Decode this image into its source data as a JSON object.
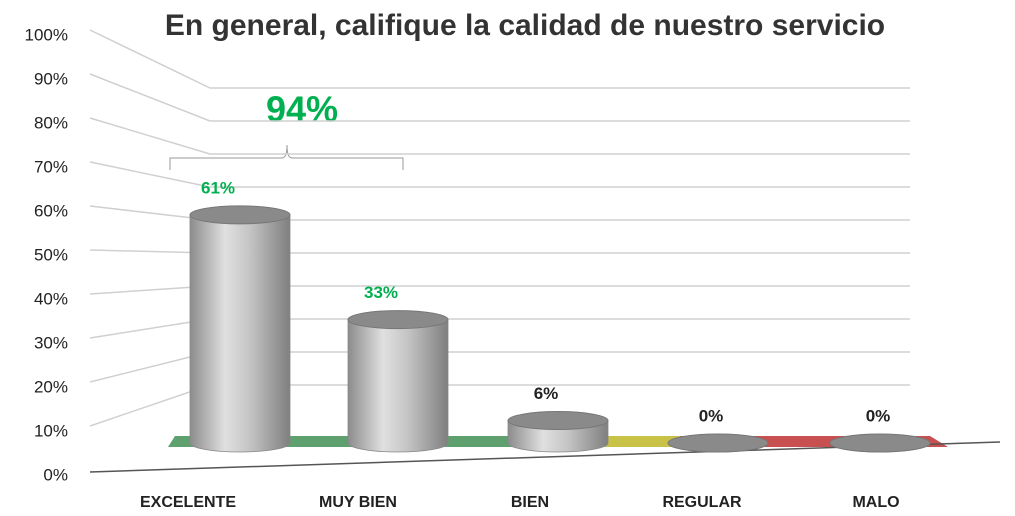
{
  "chart_data": {
    "type": "bar3d",
    "title": "En general, califique la calidad de nuestro servicio",
    "categories": [
      "EXCELENTE",
      "MUY BIEN",
      "BIEN",
      "REGULAR",
      "MALO"
    ],
    "values": [
      61,
      33,
      6,
      0,
      0
    ],
    "value_labels": [
      "61%",
      "33%",
      "6%",
      "0%",
      "0%"
    ],
    "label_colors": [
      "#00b050",
      "#00b050",
      "#222222",
      "#222222",
      "#222222"
    ],
    "color": "#a6a6a6",
    "ylim": [
      0,
      100
    ],
    "yticks": [
      {
        "value": 0,
        "label": "0%"
      },
      {
        "value": 10,
        "label": "10%"
      },
      {
        "value": 20,
        "label": "20%"
      },
      {
        "value": 30,
        "label": "30%"
      },
      {
        "value": 40,
        "label": "40%"
      },
      {
        "value": 50,
        "label": "50%"
      },
      {
        "value": 60,
        "label": "60%"
      },
      {
        "value": 70,
        "label": "70%"
      },
      {
        "value": 80,
        "label": "80%"
      },
      {
        "value": 90,
        "label": "90%"
      },
      {
        "value": 100,
        "label": "100%"
      }
    ],
    "grid": true,
    "annotation": "94%",
    "annotation_color": "#00b050"
  }
}
